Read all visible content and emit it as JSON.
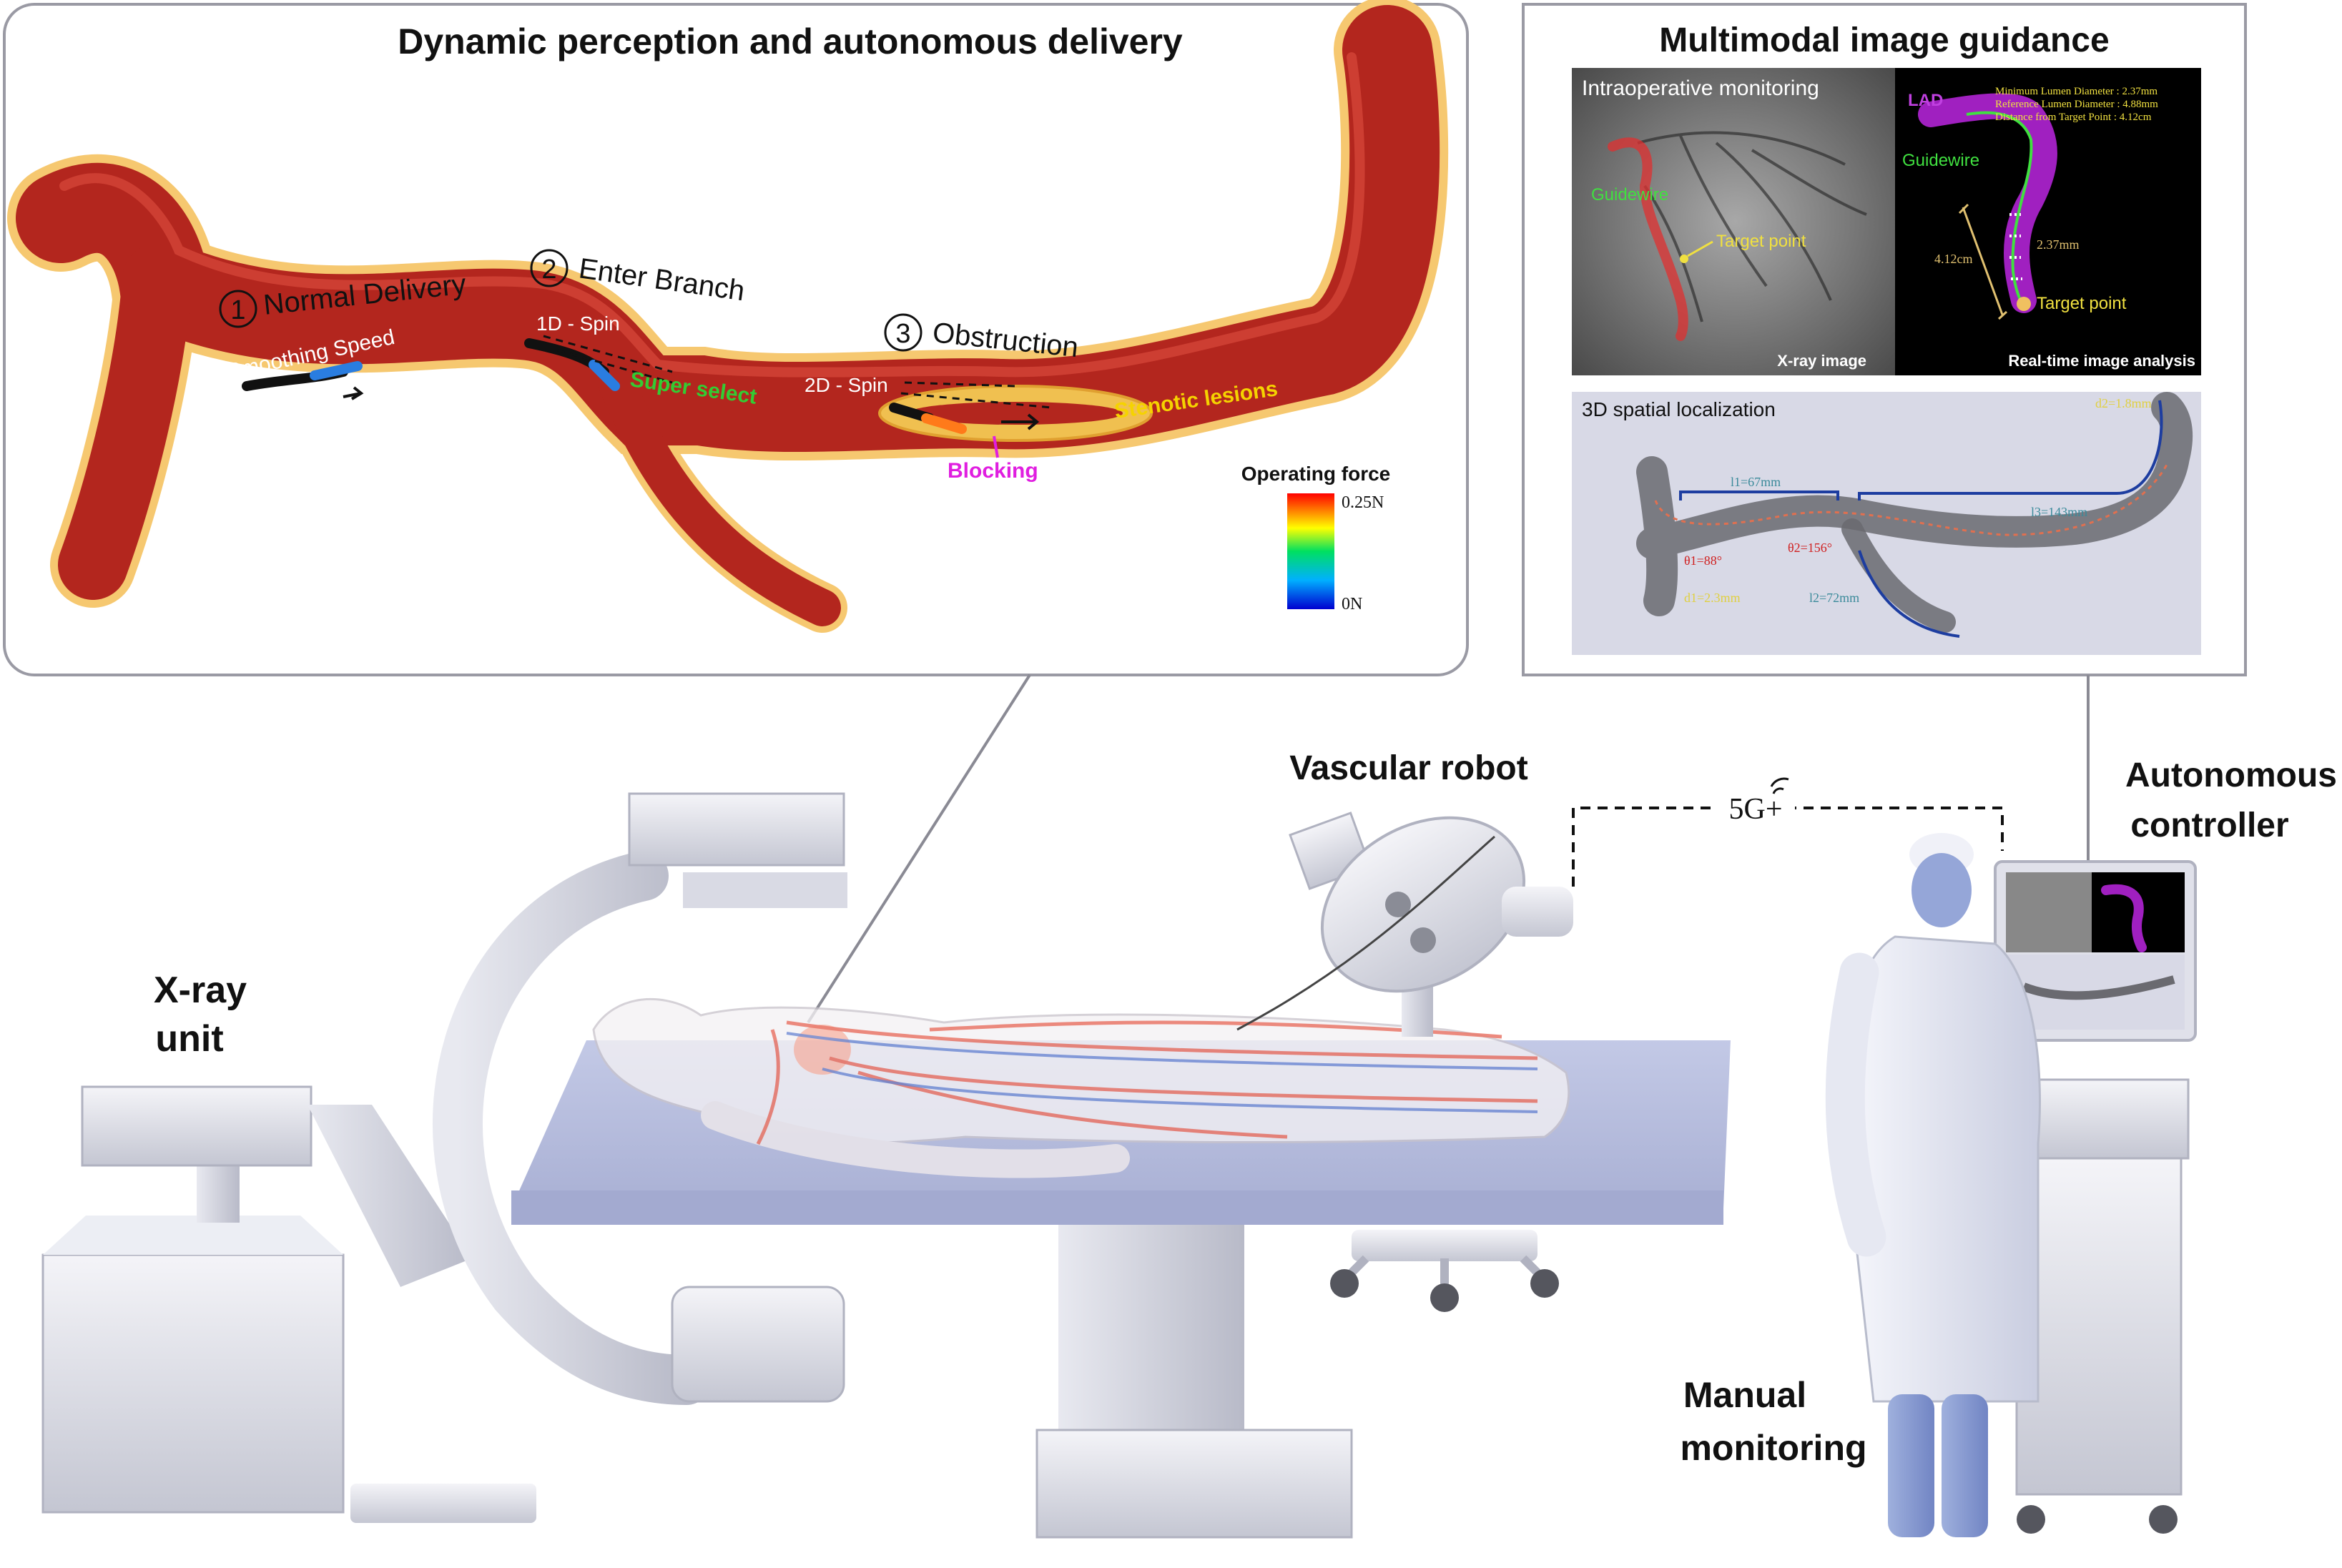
{
  "delivery_panel": {
    "title": "Dynamic perception and autonomous delivery",
    "step1_num": "1",
    "step1_label": "Normal Delivery",
    "step2_num": "2",
    "step2_label": "Enter Branch",
    "step3_num": "3",
    "step3_label": "Obstruction",
    "smoothing_speed": "Smoothing Speed",
    "spin_1d": "1D - Spin",
    "super_select": "Super select",
    "spin_2d": "2D - Spin",
    "stenotic_lesions": "Stenotic lesions",
    "blocking": "Blocking",
    "colorbar_title": "Operating force",
    "colorbar_max": "0.25N",
    "colorbar_min": "0N"
  },
  "guidance_panel": {
    "title": "Multimodal image guidance",
    "intraop_label": "Intraoperative monitoring",
    "guidewire_xray": "Guidewire",
    "target_point_xray": "Target point",
    "xray_caption": "X-ray image",
    "lad": "LAD",
    "guidewire": "Guidewire",
    "min_lumen": "Minimum Lumen Diameter : 2.37mm",
    "ref_lumen": "Reference Lumen Diameter : 4.88mm",
    "dist_target": "Distance from Target Point : 4.12cm",
    "meas_237": "2.37mm",
    "meas_412": "4.12cm",
    "target_point": "Target point",
    "analysis_caption": "Real-time image analysis",
    "spatial_label": "3D spatial localization",
    "l1": "l1=67mm",
    "l2": "l2=72mm",
    "l3": "l3=143mm",
    "theta1": "θ1=88°",
    "theta2": "θ2=156°",
    "d1": "d1=2.3mm",
    "d2": "d2=1.8mm"
  },
  "scene": {
    "xray_unit": [
      "X-ray",
      "unit"
    ],
    "vascular_robot": "Vascular robot",
    "link": "5G+",
    "autonomous_controller": [
      "Autonomous",
      "controller"
    ],
    "manual_monitoring": [
      "Manual",
      "monitoring"
    ]
  },
  "colors": {
    "vessel": "#b3261e",
    "vessel_wall": "#f2c14e",
    "super_select": "#33cc33",
    "stenotic": "#f5d300",
    "blocking": "#e01ee0",
    "lad": "#a020c0",
    "xray_labels": "#f0e040"
  }
}
